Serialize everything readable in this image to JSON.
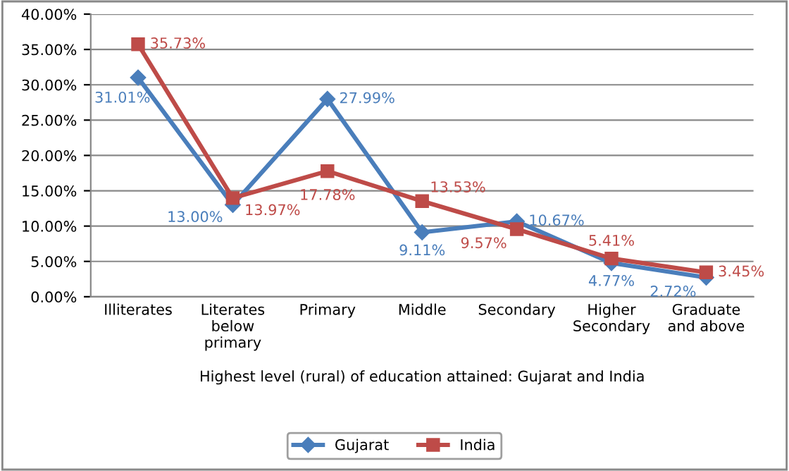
{
  "chart_data": {
    "type": "line",
    "xlabel": "Highest level (rural) of education attained: Gujarat and India",
    "categories": [
      "Illiterates",
      "Literates\nbelow\nprimary",
      "Primary",
      "Middle",
      "Secondary",
      "Higher\nSecondary",
      "Graduate\nand above"
    ],
    "series": [
      {
        "name": "Gujarat",
        "color": "#4a7ebb",
        "marker": "diamond",
        "values": [
          31.01,
          13.0,
          27.99,
          9.11,
          10.67,
          4.77,
          2.72
        ],
        "value_labels": [
          "31.01%",
          "13.00%",
          "27.99%",
          "9.11%",
          "10.67%",
          "4.77%",
          "2.72%"
        ]
      },
      {
        "name": "India",
        "color": "#be4b48",
        "marker": "square",
        "values": [
          35.73,
          13.97,
          17.78,
          13.53,
          9.57,
          5.41,
          3.45
        ],
        "value_labels": [
          "35.73%",
          "13.97%",
          "17.78%",
          "13.53%",
          "9.57%",
          "5.41%",
          "3.45%"
        ]
      }
    ],
    "ylim": [
      0,
      40
    ],
    "yticks": [
      {
        "value": 0,
        "label": "0.00%"
      },
      {
        "value": 5,
        "label": "5.00%"
      },
      {
        "value": 10,
        "label": "10.00%"
      },
      {
        "value": 15,
        "label": "15.00%"
      },
      {
        "value": 20,
        "label": "20.00%"
      },
      {
        "value": 25,
        "label": "25.00%"
      },
      {
        "value": 30,
        "label": "30.00%"
      },
      {
        "value": 35,
        "label": "35.00%"
      },
      {
        "value": 40,
        "label": "40.00%"
      }
    ],
    "grid": "y",
    "legend": "bottom",
    "line_style": "solid"
  }
}
